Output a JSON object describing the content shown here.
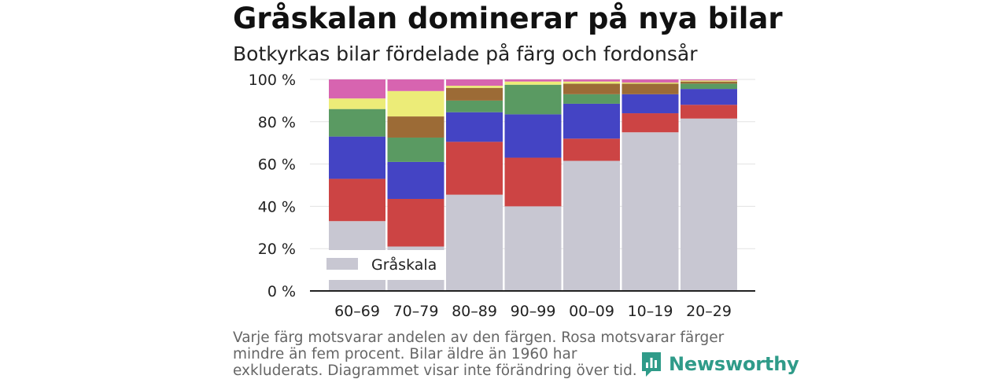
{
  "title": "Gråskalan dominerar på nya bilar",
  "subtitle": "Botkyrkas bilar fördelade på färg och fordonsår",
  "note": "Varje färg motsvarar andelen av den färgen. Rosa motsvarar färger mindre än fem procent. Bilar äldre än 1960 har\nexkluderats. Diagrammet visar inte förändring över tid.",
  "logo": {
    "text": "Newsworthy",
    "icon": "newsworthy-logo-icon",
    "color": "#2f9b89"
  },
  "chart_data": {
    "type": "bar",
    "stacked": true,
    "categories": [
      "60–69",
      "70–79",
      "80–89",
      "90–99",
      "00–09",
      "10–19",
      "20–29"
    ],
    "ylim": [
      0,
      100
    ],
    "yticks": [
      "0 %",
      "20 %",
      "40 %",
      "60 %",
      "80 %",
      "100 %"
    ],
    "ytick_values": [
      0,
      20,
      40,
      60,
      80,
      100
    ],
    "grid": true,
    "legend_position": "bottom-left",
    "legend": [
      {
        "name": "Gråskala",
        "color": "#c8c7d2"
      }
    ],
    "series": [
      {
        "name": "Gråskala",
        "color": "#c8c7d2",
        "values": [
          33,
          21,
          45.5,
          40,
          61.5,
          75,
          81.5
        ]
      },
      {
        "color": "#cc4444",
        "values": [
          20,
          22.5,
          25,
          23,
          10.5,
          9,
          6.5
        ]
      },
      {
        "color": "#4444c4",
        "values": [
          20,
          17.5,
          14,
          20.5,
          16.5,
          9,
          7.5
        ]
      },
      {
        "color": "#5a9a62",
        "values": [
          13,
          11.5,
          5.5,
          14,
          4.5,
          0,
          2.5
        ]
      },
      {
        "color": "#9c6b36",
        "values": [
          0,
          10,
          6,
          0,
          5,
          5,
          1
        ]
      },
      {
        "color": "#ecec78",
        "values": [
          5,
          12,
          1,
          1.5,
          1,
          0.5,
          0.5
        ]
      },
      {
        "color": "#d764b0",
        "values": [
          9,
          5.5,
          3,
          1,
          1,
          1.5,
          0.5
        ]
      }
    ]
  }
}
